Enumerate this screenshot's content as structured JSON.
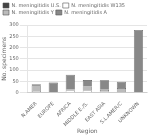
{
  "chart_data": {
    "type": "bar",
    "stacked": true,
    "xlabel": "Region",
    "ylabel": "No. specimens",
    "categories": [
      "N.AMER",
      "EUROPE",
      "AFRICA",
      "MIDDLE E./S.",
      "EAST ASIA",
      "S.L.AMER/C",
      "UNKNOWN"
    ],
    "series": [
      {
        "name": "N. meningitidis U.S.",
        "color": "#444444",
        "values": [
          3,
          0,
          2,
          2,
          0,
          0,
          0
        ]
      },
      {
        "name": "N. meningitidis W135",
        "color": "#ffffff",
        "values": [
          5,
          0,
          8,
          8,
          5,
          3,
          0
        ]
      },
      {
        "name": "N. meningitidis Y",
        "color": "#bbbbbb",
        "values": [
          25,
          0,
          5,
          18,
          8,
          18,
          0
        ]
      },
      {
        "name": "N. meningitidis A",
        "color": "#888888",
        "values": [
          5,
          45,
          65,
          28,
          42,
          28,
          278
        ]
      }
    ],
    "ylim": [
      0,
      300
    ],
    "yticks": [
      0,
      50,
      100,
      150,
      200,
      250,
      300
    ],
    "grid": true,
    "legend": "upper left"
  }
}
